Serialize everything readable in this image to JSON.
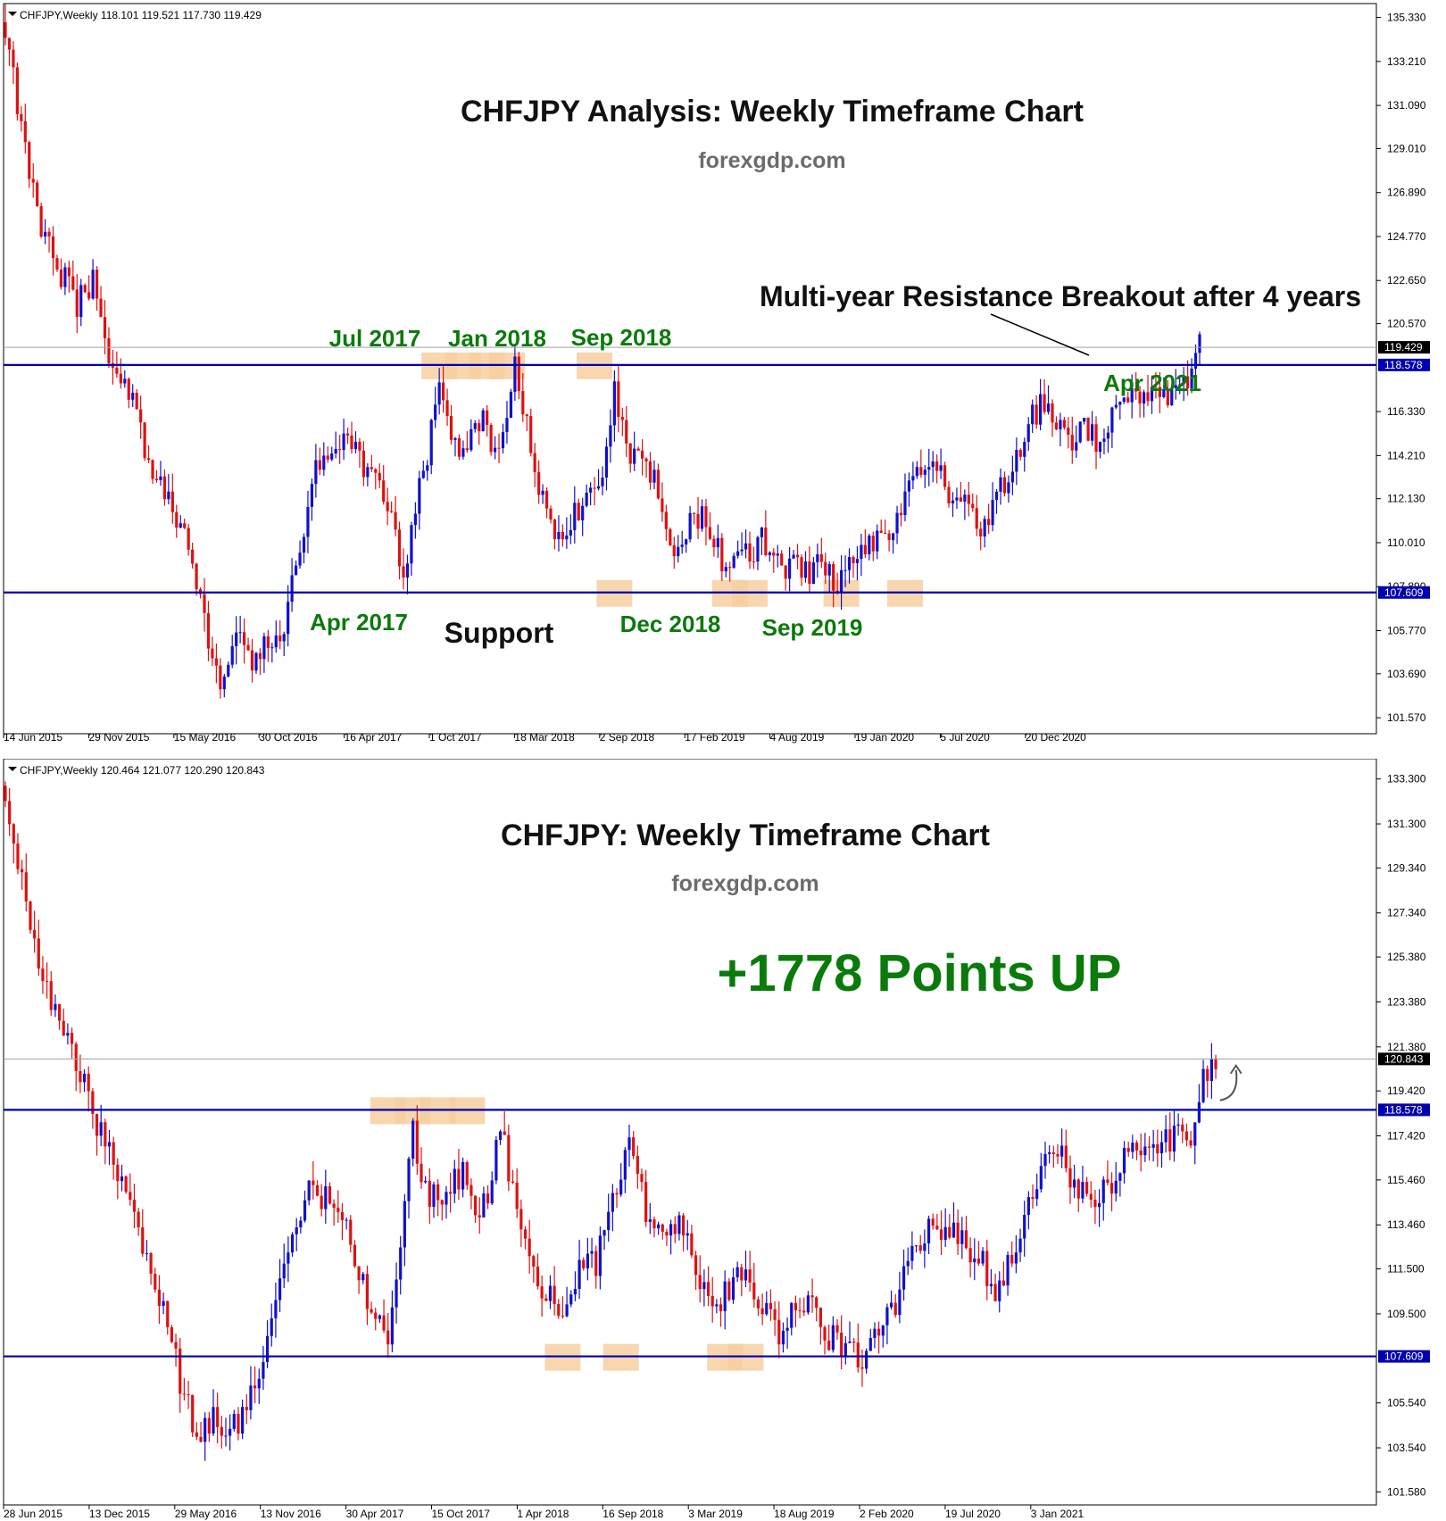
{
  "colors": {
    "bull": "#1010cc",
    "bear": "#e01010",
    "level": "#0000b0",
    "price_line": "#a0a0a0",
    "highlight": "#f7cfa0",
    "green_text": "#0a7a0a",
    "dark_text": "#111111",
    "gray_text": "#6b6b6b",
    "axis": "#000000"
  },
  "chart_data": [
    {
      "type": "candlestick",
      "header": {
        "symbol": "CHFJPY,Weekly",
        "ohlc": "118.101 119.521 117.730 119.429"
      },
      "title": "CHFJPY Analysis: Weekly Timeframe Chart",
      "subtitle": "forexgdp.com",
      "ylim": [
        100.8,
        136.0
      ],
      "y_ticks": [
        "135.330",
        "133.210",
        "131.090",
        "129.010",
        "126.890",
        "124.770",
        "122.650",
        "120.570",
        "116.330",
        "114.210",
        "112.130",
        "110.010",
        "107.890",
        "105.770",
        "103.690",
        "101.570"
      ],
      "x_ticks": [
        "14 Jun 2015",
        "29 Nov 2015",
        "15 May 2016",
        "30 Oct 2016",
        "16 Apr 2017",
        "1 Oct 2017",
        "18 Mar 2018",
        "2 Sep 2018",
        "17 Feb 2019",
        "4 Aug 2019",
        "19 Jan 2020",
        "5 Jul 2020",
        "20 Dec 2020"
      ],
      "levels": [
        {
          "price": 118.578,
          "label": "118.578"
        },
        {
          "price": 107.609,
          "label": "107.609"
        }
      ],
      "current_price": {
        "price": 119.429,
        "label": "119.429"
      },
      "annotations": [
        "Multi-year Resistance Breakout after 4 years",
        "Jul 2017",
        "Jan 2018",
        "Sep 2018",
        "Apr 2021",
        "Apr 2017",
        "Support",
        "Dec 2018",
        "Sep 2019"
      ],
      "highlight_weeks": [
        109,
        115,
        121,
        126,
        148,
        153,
        182,
        187,
        210,
        226
      ],
      "key_prices": [
        {
          "week": 0,
          "price": 134.6
        },
        {
          "week": 6,
          "price": 128.0
        },
        {
          "week": 10,
          "price": 124.5
        },
        {
          "week": 14,
          "price": 123.0
        },
        {
          "week": 18,
          "price": 121.5
        },
        {
          "week": 22,
          "price": 122.5
        },
        {
          "week": 26,
          "price": 118.5
        },
        {
          "week": 32,
          "price": 117.0
        },
        {
          "week": 36,
          "price": 114.0
        },
        {
          "week": 42,
          "price": 112.0
        },
        {
          "week": 46,
          "price": 109.5
        },
        {
          "week": 50,
          "price": 106.0
        },
        {
          "week": 54,
          "price": 103.5
        },
        {
          "week": 58,
          "price": 105.5
        },
        {
          "week": 62,
          "price": 104.5
        },
        {
          "week": 66,
          "price": 105.0
        },
        {
          "week": 70,
          "price": 106.2
        },
        {
          "week": 74,
          "price": 110.0
        },
        {
          "week": 78,
          "price": 113.5
        },
        {
          "week": 82,
          "price": 115.0
        },
        {
          "week": 86,
          "price": 114.7
        },
        {
          "week": 90,
          "price": 113.8
        },
        {
          "week": 94,
          "price": 112.8
        },
        {
          "week": 97,
          "price": 111.0
        },
        {
          "week": 100,
          "price": 108.5
        },
        {
          "week": 103,
          "price": 112.0
        },
        {
          "week": 106,
          "price": 114.0
        },
        {
          "week": 109,
          "price": 118.2
        },
        {
          "week": 112,
          "price": 115.5
        },
        {
          "week": 115,
          "price": 114.3
        },
        {
          "week": 118,
          "price": 116.3
        },
        {
          "week": 121,
          "price": 115.4
        },
        {
          "week": 124,
          "price": 114.0
        },
        {
          "week": 126,
          "price": 115.5
        },
        {
          "week": 128,
          "price": 118.3
        },
        {
          "week": 131,
          "price": 115.5
        },
        {
          "week": 134,
          "price": 113.0
        },
        {
          "week": 137,
          "price": 110.8
        },
        {
          "week": 140,
          "price": 110.4
        },
        {
          "week": 143,
          "price": 111.5
        },
        {
          "week": 146,
          "price": 112.0
        },
        {
          "week": 149,
          "price": 112.3
        },
        {
          "week": 151,
          "price": 114.5
        },
        {
          "week": 153,
          "price": 117.5
        },
        {
          "week": 156,
          "price": 114.5
        },
        {
          "week": 160,
          "price": 113.5
        },
        {
          "week": 163,
          "price": 113.5
        },
        {
          "week": 166,
          "price": 110.8
        },
        {
          "week": 169,
          "price": 109.5
        },
        {
          "week": 172,
          "price": 111.0
        },
        {
          "week": 175,
          "price": 111.5
        },
        {
          "week": 178,
          "price": 110.0
        },
        {
          "week": 181,
          "price": 108.9
        },
        {
          "week": 184,
          "price": 109.6
        },
        {
          "week": 187,
          "price": 109.2
        },
        {
          "week": 190,
          "price": 110.3
        },
        {
          "week": 193,
          "price": 109.0
        },
        {
          "week": 196,
          "price": 108.6
        },
        {
          "week": 199,
          "price": 108.8
        },
        {
          "week": 202,
          "price": 108.5
        },
        {
          "week": 205,
          "price": 109.0
        },
        {
          "week": 208,
          "price": 108.2
        },
        {
          "week": 211,
          "price": 108.5
        },
        {
          "week": 214,
          "price": 109.6
        },
        {
          "week": 218,
          "price": 110.0
        },
        {
          "week": 222,
          "price": 109.8
        },
        {
          "week": 226,
          "price": 112.5
        },
        {
          "week": 230,
          "price": 113.2
        },
        {
          "week": 234,
          "price": 113.5
        },
        {
          "week": 237,
          "price": 112.5
        },
        {
          "week": 240,
          "price": 112.5
        },
        {
          "week": 243,
          "price": 111.5
        },
        {
          "week": 246,
          "price": 110.5
        },
        {
          "week": 250,
          "price": 112.5
        },
        {
          "week": 254,
          "price": 114.2
        },
        {
          "week": 258,
          "price": 116.0
        },
        {
          "week": 262,
          "price": 117.0
        },
        {
          "week": 265,
          "price": 115.5
        },
        {
          "week": 268,
          "price": 114.5
        },
        {
          "week": 271,
          "price": 115.5
        },
        {
          "week": 274,
          "price": 114.8
        },
        {
          "week": 278,
          "price": 116.3
        },
        {
          "week": 282,
          "price": 116.8
        },
        {
          "week": 286,
          "price": 117.0
        },
        {
          "week": 290,
          "price": 117.2
        },
        {
          "week": 293,
          "price": 116.8
        },
        {
          "week": 296,
          "price": 117.6
        },
        {
          "week": 298,
          "price": 118.2
        },
        {
          "week": 300,
          "price": 119.4
        }
      ]
    },
    {
      "type": "candlestick",
      "header": {
        "symbol": "CHFJPY,Weekly",
        "ohlc": "120.464 121.077 120.290 120.843"
      },
      "title": "CHFJPY: Weekly Timeframe Chart",
      "subtitle": "forexgdp.com",
      "ylim": [
        101.0,
        134.2
      ],
      "y_ticks": [
        "133.300",
        "131.300",
        "129.340",
        "127.340",
        "125.380",
        "123.380",
        "121.380",
        "119.420",
        "117.420",
        "115.460",
        "113.460",
        "111.500",
        "109.500",
        "105.540",
        "103.540",
        "101.580"
      ],
      "x_ticks": [
        "28 Jun 2015",
        "13 Dec 2015",
        "29 May 2016",
        "13 Nov 2016",
        "30 Apr 2017",
        "15 Oct 2017",
        "1 Apr 2018",
        "16 Sep 2018",
        "3 Mar 2019",
        "18 Aug 2019",
        "2 Feb 2020",
        "19 Jul 2020",
        "3 Jan 2021"
      ],
      "levels": [
        {
          "price": 118.578,
          "label": "118.578"
        },
        {
          "price": 107.609,
          "label": "107.609"
        }
      ],
      "current_price": {
        "price": 120.843,
        "label": "120.843"
      },
      "annotations": [
        "+1778 Points UP"
      ],
      "highlight_weeks": [
        92,
        98,
        104,
        111,
        134,
        148,
        173,
        178
      ],
      "key_prices": [
        {
          "week": 0,
          "price": 132.5
        },
        {
          "week": 6,
          "price": 127.0
        },
        {
          "week": 10,
          "price": 124.0
        },
        {
          "week": 14,
          "price": 122.0
        },
        {
          "week": 18,
          "price": 120.0
        },
        {
          "week": 22,
          "price": 118.0
        },
        {
          "week": 26,
          "price": 116.0
        },
        {
          "week": 30,
          "price": 114.0
        },
        {
          "week": 34,
          "price": 112.0
        },
        {
          "week": 38,
          "price": 110.0
        },
        {
          "week": 42,
          "price": 106.5
        },
        {
          "week": 46,
          "price": 104.0
        },
        {
          "week": 50,
          "price": 105.0
        },
        {
          "week": 54,
          "price": 104.5
        },
        {
          "week": 58,
          "price": 105.0
        },
        {
          "week": 62,
          "price": 107.5
        },
        {
          "week": 66,
          "price": 111.0
        },
        {
          "week": 70,
          "price": 114.0
        },
        {
          "week": 74,
          "price": 115.0
        },
        {
          "week": 78,
          "price": 114.5
        },
        {
          "week": 82,
          "price": 113.5
        },
        {
          "week": 86,
          "price": 111.0
        },
        {
          "week": 89,
          "price": 109.0
        },
        {
          "week": 92,
          "price": 108.3
        },
        {
          "week": 95,
          "price": 112.0
        },
        {
          "week": 98,
          "price": 117.8
        },
        {
          "week": 101,
          "price": 115.0
        },
        {
          "week": 104,
          "price": 114.5
        },
        {
          "week": 107,
          "price": 115.5
        },
        {
          "week": 110,
          "price": 115.8
        },
        {
          "week": 113,
          "price": 114.0
        },
        {
          "week": 116,
          "price": 115.0
        },
        {
          "week": 119,
          "price": 117.9
        },
        {
          "week": 122,
          "price": 115.0
        },
        {
          "week": 126,
          "price": 112.0
        },
        {
          "week": 130,
          "price": 110.5
        },
        {
          "week": 134,
          "price": 109.6
        },
        {
          "week": 138,
          "price": 111.2
        },
        {
          "week": 142,
          "price": 111.8
        },
        {
          "week": 146,
          "price": 114.5
        },
        {
          "week": 150,
          "price": 117.4
        },
        {
          "week": 154,
          "price": 114.2
        },
        {
          "week": 158,
          "price": 113.2
        },
        {
          "week": 162,
          "price": 113.8
        },
        {
          "week": 166,
          "price": 111.0
        },
        {
          "week": 170,
          "price": 109.8
        },
        {
          "week": 174,
          "price": 110.5
        },
        {
          "week": 178,
          "price": 111.3
        },
        {
          "week": 182,
          "price": 110.0
        },
        {
          "week": 186,
          "price": 108.8
        },
        {
          "week": 190,
          "price": 109.5
        },
        {
          "week": 194,
          "price": 109.8
        },
        {
          "week": 198,
          "price": 108.5
        },
        {
          "week": 202,
          "price": 107.9
        },
        {
          "week": 206,
          "price": 107.6
        },
        {
          "week": 210,
          "price": 109.0
        },
        {
          "week": 214,
          "price": 110.0
        },
        {
          "week": 218,
          "price": 112.3
        },
        {
          "week": 222,
          "price": 113.2
        },
        {
          "week": 226,
          "price": 113.5
        },
        {
          "week": 230,
          "price": 112.8
        },
        {
          "week": 234,
          "price": 112.0
        },
        {
          "week": 238,
          "price": 110.5
        },
        {
          "week": 242,
          "price": 112.0
        },
        {
          "week": 246,
          "price": 114.0
        },
        {
          "week": 250,
          "price": 116.0
        },
        {
          "week": 254,
          "price": 116.5
        },
        {
          "week": 258,
          "price": 115.0
        },
        {
          "week": 262,
          "price": 114.5
        },
        {
          "week": 266,
          "price": 115.5
        },
        {
          "week": 270,
          "price": 116.5
        },
        {
          "week": 274,
          "price": 117.0
        },
        {
          "week": 278,
          "price": 117.0
        },
        {
          "week": 282,
          "price": 117.5
        },
        {
          "week": 286,
          "price": 117.6
        },
        {
          "week": 288,
          "price": 119.8
        },
        {
          "week": 290,
          "price": 120.6
        },
        {
          "week": 291,
          "price": 120.8
        }
      ]
    }
  ]
}
